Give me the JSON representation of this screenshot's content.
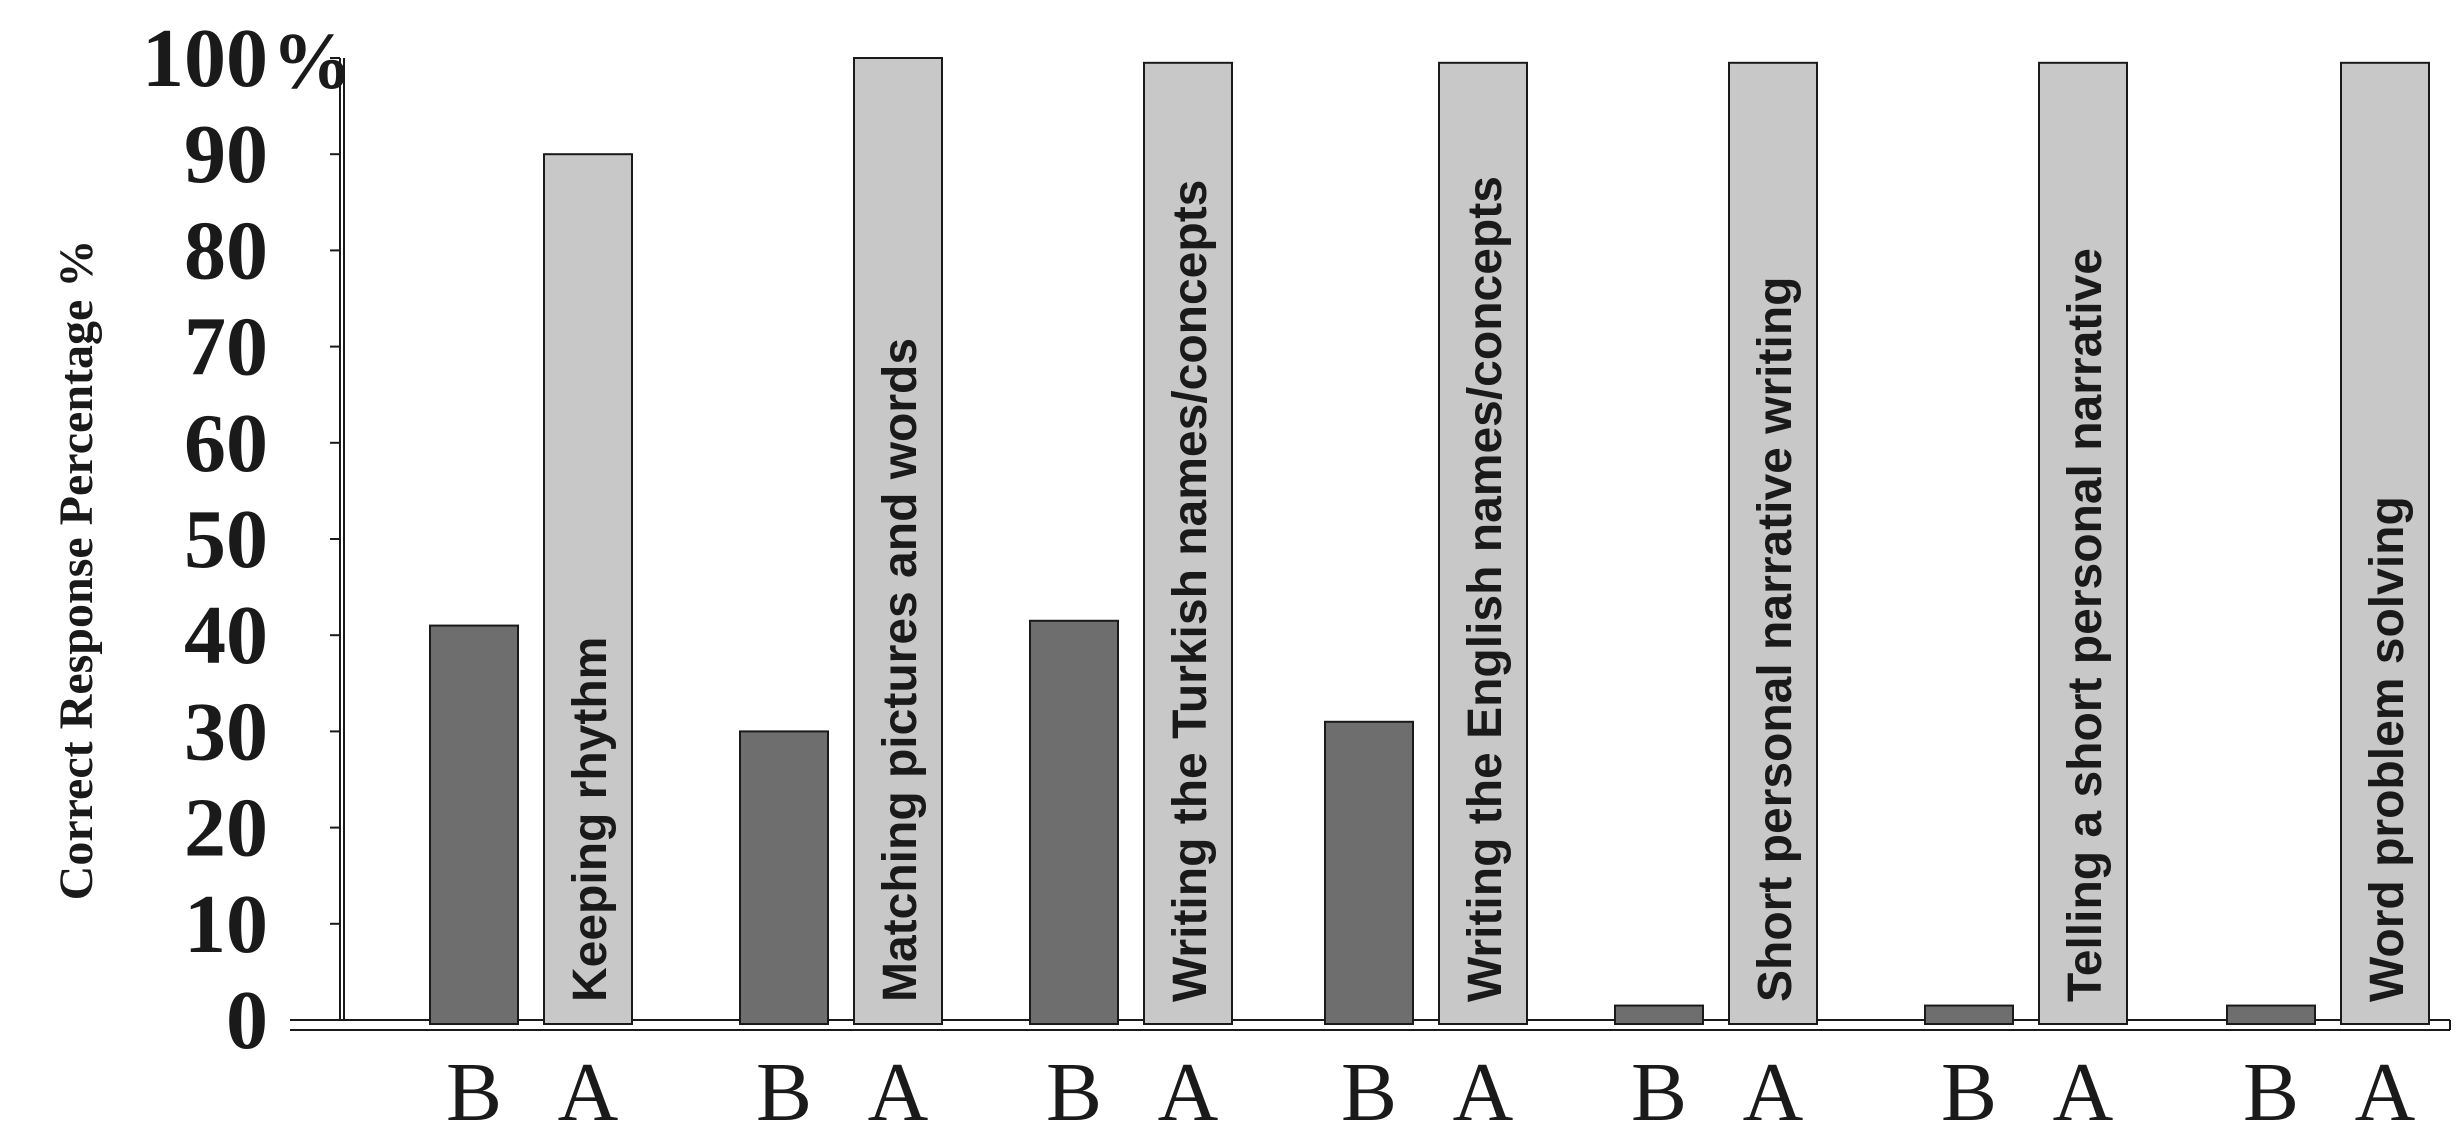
{
  "chart_data": {
    "type": "bar",
    "ylabel": "Correct Response Percentage %",
    "ylim": [
      0,
      100
    ],
    "yticks": [
      "0",
      "10",
      "20",
      "30",
      "40",
      "50",
      "60",
      "70",
      "80",
      "90",
      "100"
    ],
    "ytick_unit": "%",
    "grid": false,
    "legend": "none",
    "categories": [
      "Keeping rhythm",
      "Matching pictures and words",
      "Writing the Turkish names/concepts",
      "Writing the English names/concepts",
      "Short personal narrative writing",
      "Telling a short personal narrative",
      "Word problem solving"
    ],
    "series": [
      {
        "label": "B",
        "values": [
          41,
          30,
          41.5,
          31,
          1.5,
          1.5,
          1.5
        ]
      },
      {
        "label": "A",
        "values": [
          90,
          100,
          99.5,
          99.5,
          99.5,
          99.5,
          99.5
        ]
      }
    ],
    "colors": {
      "B": "#6e6e6e",
      "A": "#c8c8c8",
      "axis": "#1a1a1a",
      "edge": "#1a1a1a"
    }
  }
}
